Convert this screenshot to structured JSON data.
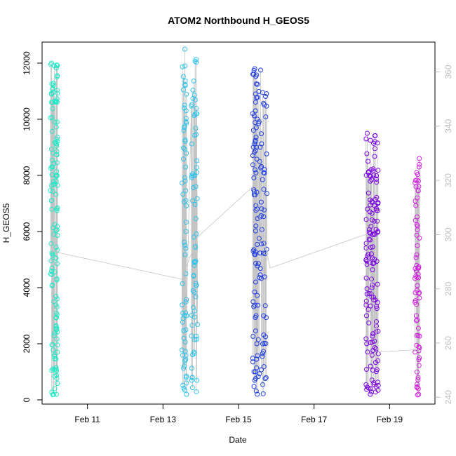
{
  "chart_data": {
    "type": "scatter",
    "title": "ATOM2 Northbound H_GEOS5",
    "xlabel": "Date",
    "ylabel": "H_GEOS5",
    "grid": false,
    "legend": "none",
    "xlim": [
      "2016-02-09T19:12",
      "2016-02-20T04:48"
    ],
    "ylim": [
      -150,
      12750
    ],
    "x_ticks": [
      {
        "value": "2016-02-11",
        "label": "Feb 11"
      },
      {
        "value": "2016-02-13",
        "label": "Feb 13"
      },
      {
        "value": "2016-02-15",
        "label": "Feb 15"
      },
      {
        "value": "2016-02-17",
        "label": "Feb 17"
      },
      {
        "value": "2016-02-19",
        "label": "Feb 19"
      }
    ],
    "y_ticks": [
      0,
      2000,
      4000,
      6000,
      8000,
      10000,
      12000
    ],
    "y2": {
      "ylim": [
        237.5,
        371
      ],
      "ticks": [
        240,
        260,
        280,
        300,
        320,
        340,
        360
      ],
      "color": "#bdbdbd"
    },
    "marker": "open-circle",
    "line_color": "#c4c4c4",
    "series": [
      {
        "color": "#1de9c8",
        "x": [
          "2016-02-10T00:30",
          "2016-02-10T04:00"
        ],
        "x_end": [
          "2016-02-10T03:30",
          "2016-02-10T05:00"
        ],
        "min": 150,
        "max": 12000,
        "dense_values": [
          10050,
          9900,
          8300,
          7100,
          5900,
          5200,
          4700,
          3500,
          2300,
          1100,
          200,
          11200,
          11900,
          12000,
          10600
        ]
      },
      {
        "color": "#2ec3ea",
        "x": [
          "2016-02-13T12:00",
          "2016-02-13T18:00"
        ],
        "x_end": [
          "2016-02-13T15:00",
          "2016-02-13T22:00"
        ],
        "min": 150,
        "max": 12500,
        "dense_values": [
          9600,
          9700,
          10400,
          10500,
          11200,
          11900,
          12500,
          7800,
          6000,
          4500,
          3000,
          2200,
          1200,
          600,
          200
        ]
      },
      {
        "color": "#1e3ce6",
        "x": [
          "2016-02-15T09:00",
          "2016-02-15T12:00"
        ],
        "x_end": [
          "2016-02-15T12:00",
          "2016-02-15T18:00"
        ],
        "min": 150,
        "max": 11800,
        "dense_values": [
          11800,
          11600,
          10900,
          10300,
          9700,
          9000,
          8200,
          7400,
          6200,
          5300,
          4200,
          3000,
          2000,
          1000,
          200
        ]
      },
      {
        "color": "#7a00e6",
        "x": [
          "2016-02-18T09:00",
          "2016-02-18T13:00"
        ],
        "x_end": [
          "2016-02-18T13:00",
          "2016-02-18T17:00"
        ],
        "min": 150,
        "max": 9550,
        "dense_values": [
          8500,
          8100,
          9500,
          9300,
          6800,
          6700,
          5700,
          5000,
          4000,
          3000,
          2000,
          1200,
          400,
          200,
          8000
        ]
      },
      {
        "color": "#d41ee0",
        "x": [
          "2016-02-19T16:00"
        ],
        "x_end": [
          "2016-02-19T19:00"
        ],
        "min": 150,
        "max": 8600,
        "dense_values": [
          8600,
          8300,
          7800,
          7200,
          6200,
          5500,
          4700,
          3800,
          3000,
          2300,
          1500,
          800,
          400,
          200
        ]
      }
    ],
    "connector_line": [
      {
        "x": "2016-02-10T01:00",
        "y": 5300
      },
      {
        "x": "2016-02-13T12:00",
        "y": 4300
      },
      {
        "x": "2016-02-13T22:00",
        "y": 5800
      },
      {
        "x": "2016-02-15T09:00",
        "y": 7600
      },
      {
        "x": "2016-02-15T20:00",
        "y": 4700
      },
      {
        "x": "2016-02-18T09:00",
        "y": 5900
      },
      {
        "x": "2016-02-18T17:00",
        "y": 1700
      },
      {
        "x": "2016-02-19T19:00",
        "y": 1800
      }
    ]
  }
}
